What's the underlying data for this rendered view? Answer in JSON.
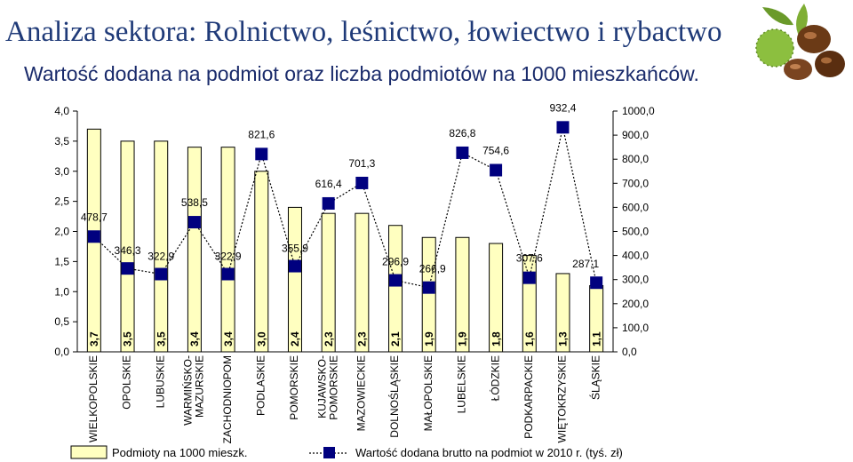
{
  "header": {
    "title": "Analiza sektora: Rolnictwo, leśnictwo, łowiectwo i rybactwo",
    "subtitle": "Wartość dodana na podmiot oraz liczba podmiotów na 1000 mieszkańców.",
    "decoration_icon": "chestnuts-icon"
  },
  "chart_data": {
    "type": "bar",
    "categories": [
      "WIELKOPOLSKIE",
      "OPOLSKIE",
      "LUBUSKIE",
      "WARMIŃSKO-MAZURSKIE",
      "ZACHODNIOPOM",
      "PODLASKIE",
      "POMORSKIE",
      "KUJAWSKO-POMORSKIE",
      "MAZOWIECKIE",
      "DOLNOŚLĄSKIE",
      "MAŁOPOLSKIE",
      "LUBELSKIE",
      "ŁÓDZKIE",
      "PODKARPACKIE",
      "WIĘTOKRZYSKIE",
      "ŚLĄSKIE"
    ],
    "category_lines": [
      [
        "WIELKOPOLSKIE"
      ],
      [
        "OPOLSKIE"
      ],
      [
        "LUBUSKIE"
      ],
      [
        "WARMIŃSKO-",
        "MAZURSKIE"
      ],
      [
        "ZACHODNIOPOM"
      ],
      [
        "PODLASKIE"
      ],
      [
        "POMORSKIE"
      ],
      [
        "KUJAWSKO-",
        "POMORSKIE"
      ],
      [
        "MAZOWIECKIE"
      ],
      [
        "DOLNOŚLĄSKIE"
      ],
      [
        "MAŁOPOLSKIE"
      ],
      [
        "LUBELSKIE"
      ],
      [
        "ŁÓDZKIE"
      ],
      [
        "PODKARPACKIE"
      ],
      [
        "WIĘTOKRZYSKIE"
      ],
      [
        "ŚLĄSKIE"
      ]
    ],
    "series": [
      {
        "name": "Podmioty na 1000 mieszk.",
        "kind": "bar",
        "axis": "left",
        "values": [
          3.7,
          3.5,
          3.5,
          3.4,
          3.4,
          3.0,
          2.4,
          2.3,
          2.3,
          2.1,
          1.9,
          1.9,
          1.8,
          1.6,
          1.3,
          1.1
        ],
        "labels": [
          "3,7",
          "3,5",
          "3,5",
          "3,4",
          "3,4",
          "3,0",
          "2,4",
          "2,3",
          "2,3",
          "2,1",
          "1,9",
          "1,9",
          "1,8",
          "1,6",
          "1,3",
          "1,1"
        ],
        "color": "#ffffc0"
      },
      {
        "name": "Wartość dodana brutto na podmiot w 2010 r. (tyś. zł)",
        "kind": "line",
        "axis": "right",
        "values": [
          478.7,
          346.3,
          322.9,
          538.5,
          322.9,
          821.6,
          355.9,
          616.4,
          701.3,
          296.9,
          266.9,
          826.8,
          754.6,
          307.6,
          932.4,
          287.1
        ],
        "labels": [
          "478,7",
          "346,3",
          "322,9",
          "538,5",
          "322,9",
          "821,6",
          "355,9",
          "616,4",
          "701,3",
          "296,9",
          "266,9",
          "826,8",
          "754,6",
          "307,6",
          "932,4",
          "287,1"
        ],
        "color": "#00007f"
      }
    ],
    "y_left": {
      "min": 0,
      "max": 4,
      "ticks": [
        "0,0",
        "0,5",
        "1,0",
        "1,5",
        "2,0",
        "2,5",
        "3,0",
        "3,5",
        "4,0"
      ]
    },
    "y_right": {
      "min": 0,
      "max": 1000,
      "ticks": [
        "0,0",
        "100,0",
        "200,0",
        "300,0",
        "400,0",
        "500,0",
        "600,0",
        "700,0",
        "800,0",
        "900,0",
        "1000,0"
      ]
    },
    "legend": {
      "placement": "bottom"
    }
  }
}
